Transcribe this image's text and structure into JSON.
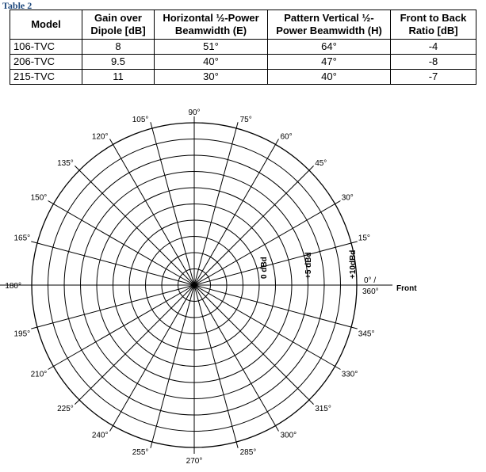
{
  "caption": "Table 2",
  "table": {
    "headers": {
      "model": "Model",
      "gain_line1": "Gain over",
      "gain_line2": "Dipole [dB]",
      "horiz_line1": "Horizontal ½-Power",
      "horiz_line2": "Beamwidth (E)",
      "vert_line1": "Pattern Vertical ½-",
      "vert_line2": "Power Beamwidth (H)",
      "ftb_line1": "Front to Back",
      "ftb_line2": "Ratio [dB]"
    },
    "rows": [
      {
        "model": "106-TVC",
        "gain": "8",
        "horizontal": "51°",
        "vertical": "64°",
        "front_to_back": "-4"
      },
      {
        "model": "206-TVC",
        "gain": "9.5",
        "horizontal": "40°",
        "vertical": "47°",
        "front_to_back": "-8"
      },
      {
        "model": "215-TVC",
        "gain": "11",
        "horizontal": "30°",
        "vertical": "40°",
        "front_to_back": "-7"
      }
    ]
  },
  "polar_chart": {
    "angle_step_deg": 15,
    "ring_count": 10,
    "angle_labels": [
      "0° / 360°",
      "15°",
      "30°",
      "45°",
      "60°",
      "75°",
      "90°",
      "105°",
      "120°",
      "135°",
      "150°",
      "165°",
      "180°",
      "195°",
      "210°",
      "225°",
      "240°",
      "255°",
      "270°",
      "285°",
      "300°",
      "315°",
      "330°",
      "345°"
    ],
    "zero_top": "0° /",
    "zero_bottom": "360°",
    "front_label": "Front",
    "ring_labels": [
      "0 dBd",
      "+5 dBd",
      "+10dBd"
    ]
  }
}
